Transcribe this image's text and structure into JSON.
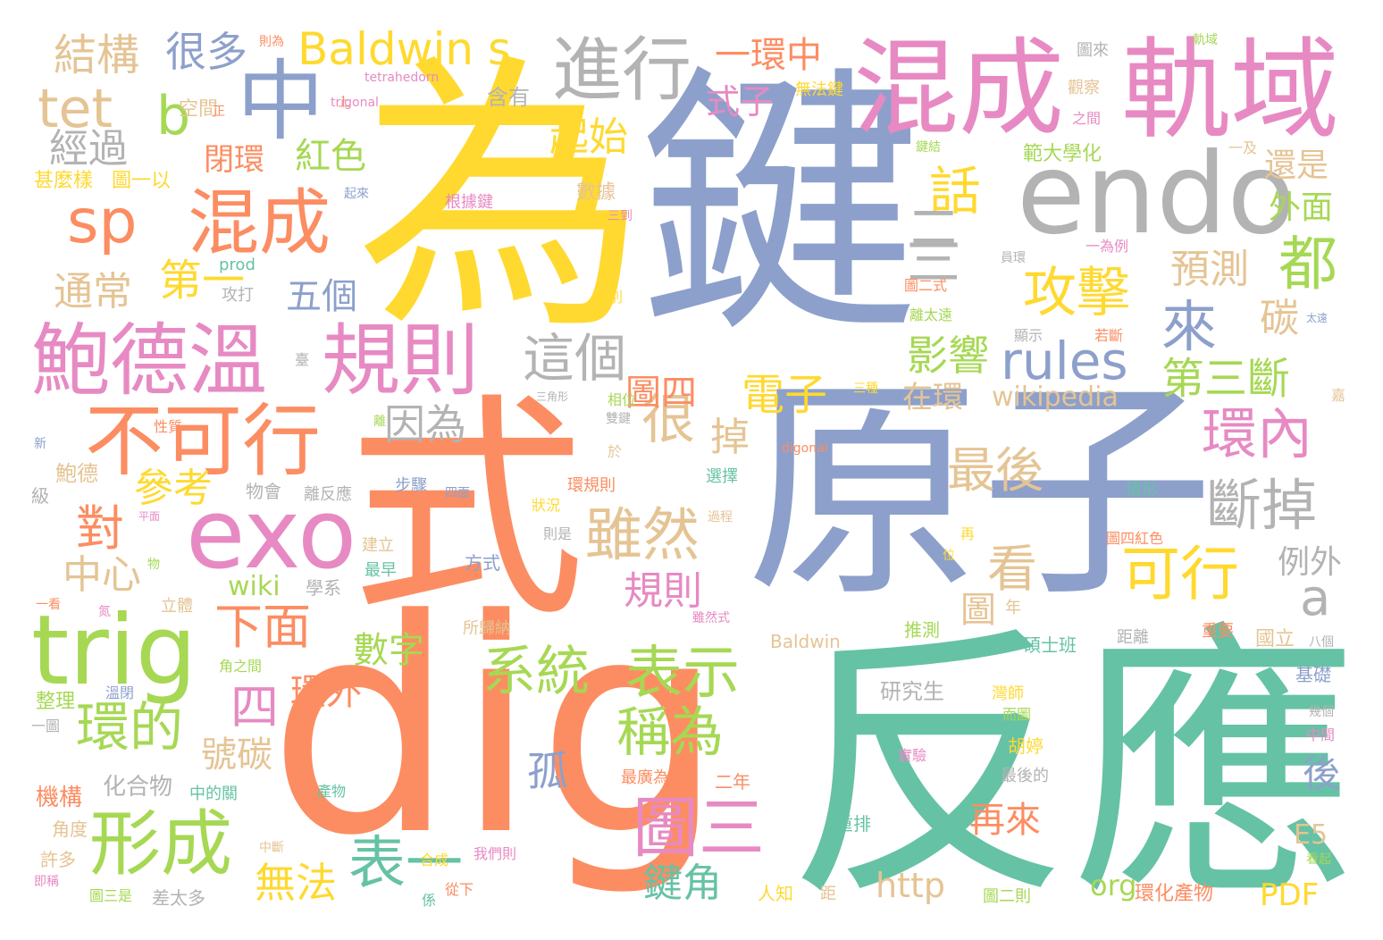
{
  "colors": {
    "teal": "#66c2a5",
    "orange": "#fc8d62",
    "blue": "#8da0cb",
    "pink": "#e78ac3",
    "green": "#a6d854",
    "yellow": "#ffd92f",
    "tan": "#e5c494",
    "gray": "#b3b3b3"
  },
  "words": {
    "wei_big": "為",
    "jian": "鍵",
    "yuanzi": "原子",
    "fanying": "反應",
    "dig": "dig",
    "shi": "式",
    "endo": "endo",
    "huncheng_top": "混成",
    "guiyu": "軌域",
    "zhong": "中",
    "jinxing": "進行",
    "baldwin_s": "Baldwin s",
    "exo": "exo",
    "trig": "trig",
    "baodewen": "鮑德溫",
    "guize": "規則",
    "bukexing": "不可行",
    "sp": "sp",
    "hunchengb": "混成",
    "jiegou": "結構",
    "henduo": "很多",
    "tet": "tet",
    "b": "b",
    "jingguo": "經過",
    "tongchang": "通常",
    "diyi": "第一",
    "wuge": "五個",
    "bihuan": "閉環",
    "hongse": "紅色",
    "yihuanzhong": "一環中",
    "shizi": "式子",
    "qishi": "起始",
    "hua": "話",
    "er": "二",
    "san": "三",
    "gongji": "攻擊",
    "lai": "來",
    "zhege": "這個",
    "rules": "rules",
    "yingxiang": "影響",
    "dianzi": "電子",
    "yinwei": "因為",
    "zaihuan": "在環",
    "wikipedia": "wikipedia",
    "huannei": "環內",
    "duandiao": "斷掉",
    "zuihou": "最後",
    "hen": "很",
    "diao": "掉",
    "suiran": "雖然",
    "kan": "看",
    "kexing": "可行",
    "a": "a",
    "tu": "圖",
    "cankao": "參考",
    "dui": "對",
    "zhongxin": "中心",
    "xiamian": "下面",
    "tusi": "圖四",
    "guize2": "規則",
    "xitong": "系統",
    "biaoshi": "表示",
    "chengwei": "稱為",
    "dou": "都",
    "yuce": "預測",
    "tan": "碳",
    "disanduan": "第三斷",
    "haishi": "還是",
    "waimian": "外面",
    "lingwai": "例外",
    "shuzi": "數字",
    "huanwai": "環外",
    "si": "四",
    "huande": "環的",
    "xingcheng": "形成",
    "haotan": "號碳",
    "gu": "孤",
    "tusan": "圖三",
    "biaoyi": "表一",
    "wufa": "無法",
    "jianjiao": "鍵角",
    "hou": "後",
    "zailai": "再來",
    "http": "http",
    "org": "org",
    "pdf": "PDF",
    "e5": "E5",
    "wiki": "wiki",
    "huahewu": "化合物",
    "jigou": "機構",
    "shenmeyang": "甚麼樣",
    "tuyiyi": "圖一以",
    "kongjian": "空間",
    "zheng": "正",
    "zewei": "則為",
    "shang": "上",
    "tetrahedorn": "tetrahedorn",
    "trigonal": "trigonal",
    "hanyou": "含有",
    "wufajian": "無法鍵",
    "guancha": "觀察",
    "tulai": "圖來",
    "guiyu_small": "軌域",
    "zhijian": "之間",
    "yiji": "一及",
    "fanwei": "範大學化",
    "jianjie": "鍵結",
    "qilai": "起來",
    "genjujian": "根據鍵",
    "shuju": "數據",
    "sandao": "三到",
    "prod": "prod",
    "gongda": "攻打",
    "fenbie": "分別",
    "tuershi": "圖二式",
    "yiweili": "一為例",
    "yuanhuan": "員環",
    "litaiyuan": "離太遠",
    "xianshi": "顯示",
    "ruoduan": "若斷",
    "taiyuan": "太遠",
    "tai": "臺",
    "sanjiaoxing": "三角形",
    "sanzhong": "三種",
    "xiangwei": "相位",
    "shuangjian": "雙鍵",
    "jia": "嘉",
    "xingzhi": "性質",
    "li": "離",
    "yu": "於",
    "digonal": "digonal",
    "xin": "新",
    "baode": "鮑德",
    "ji": "級",
    "wuhui": "物會",
    "lifanying": "離反應",
    "buzhou": "步驟",
    "simian": "四面",
    "xuanze": "選擇",
    "huanguize": "環規則",
    "zhuangkuang": "狀況",
    "huanxing": "環形",
    "pingmian": "平面",
    "guocheng": "過程",
    "jianli": "建立",
    "zeshi": "則是",
    "zai": "再",
    "tusihongse": "圖四紅色",
    "wu": "物",
    "zuizao": "最早",
    "fangshi": "方式",
    "wei_small": "位",
    "xuexi": "學系",
    "yikan": "一看",
    "qi": "氮",
    "liti": "立體",
    "suoguina": "所歸納",
    "suiranshi": "雖然式",
    "nian": "年",
    "baldwin2": "Baldwin",
    "tuice": "推測",
    "shuoshiban": "碩士班",
    "juli": "距離",
    "zhongyao": "重要",
    "guoli": "國立",
    "bage": "八個",
    "jiaozhijian": "角之間",
    "wenbi": "溫閉",
    "zhengli": "整理",
    "yitu": "一圖",
    "yanjiusheng": "研究生",
    "wanshi": "灣師",
    "ertu": "而圖",
    "jichu": "基礎",
    "jige": "幾個",
    "zhongjian": "中間",
    "hutinge": "胡婷",
    "shiyan": "實驗",
    "zuihoude": "最後的",
    "zhongdeguan": "中的關",
    "chanwu": "產物",
    "zuiguangwei": "最廣為",
    "ernian": "二年",
    "jiaodu": "角度",
    "zhongduan": "中斷",
    "chongpai": "重排",
    "xuduo": "許多",
    "hecheng": "合成",
    "womenze": "我們則",
    "jicheng": "即稱",
    "tusanshi": "圖三是",
    "chataiduo": "差太多",
    "xi": "係",
    "congxia": "從下",
    "renzhi": "人知",
    "ju": "距",
    "tuerze": "圖二則",
    "huanhuachanwu": "環化產物",
    "kanqi": "看起"
  }
}
